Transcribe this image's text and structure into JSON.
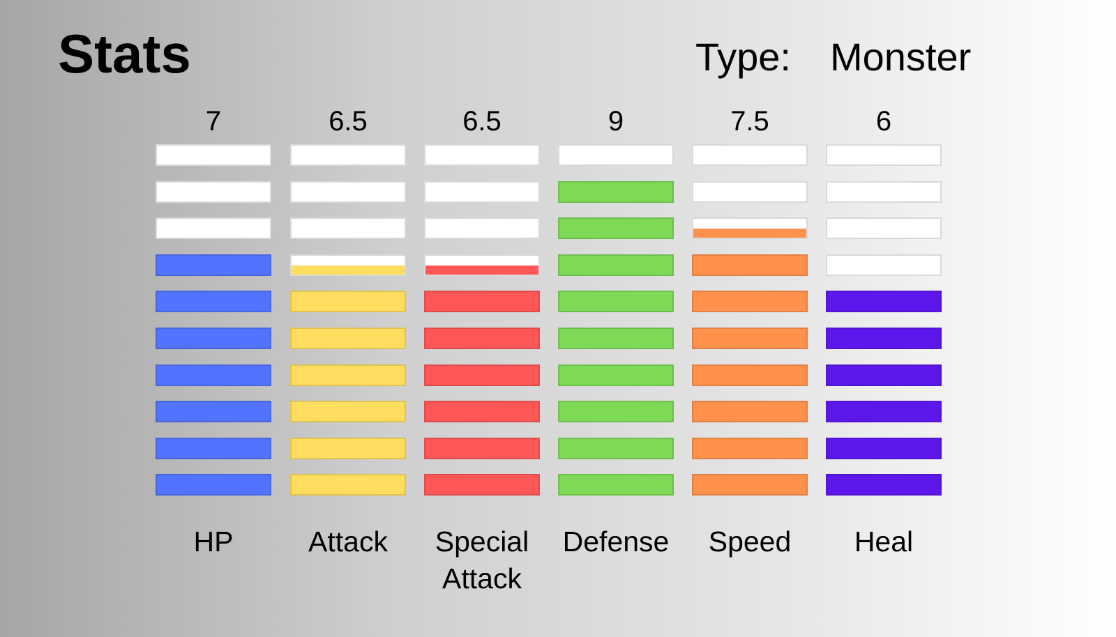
{
  "header": {
    "title": "Stats",
    "type_label": "Type:",
    "type_value": "Monster"
  },
  "chart_data": {
    "type": "bar",
    "title": "Stats",
    "ylim": [
      0,
      10
    ],
    "segments_per_bar": 10,
    "empty_color": "#ffffff",
    "categories": [
      "HP",
      "Attack",
      "Special Attack",
      "Defense",
      "Speed",
      "Heal"
    ],
    "value_labels": [
      "7",
      "6.5",
      "6.5",
      "9",
      "7.5",
      "6"
    ],
    "values": [
      7,
      6.5,
      6.5,
      9,
      7.5,
      6
    ],
    "colors": [
      "#5273ff",
      "#ffdd5e",
      "#ff5757",
      "#7ed957",
      "#ff914d",
      "#5e17eb"
    ],
    "grid": false,
    "legend": "none"
  }
}
